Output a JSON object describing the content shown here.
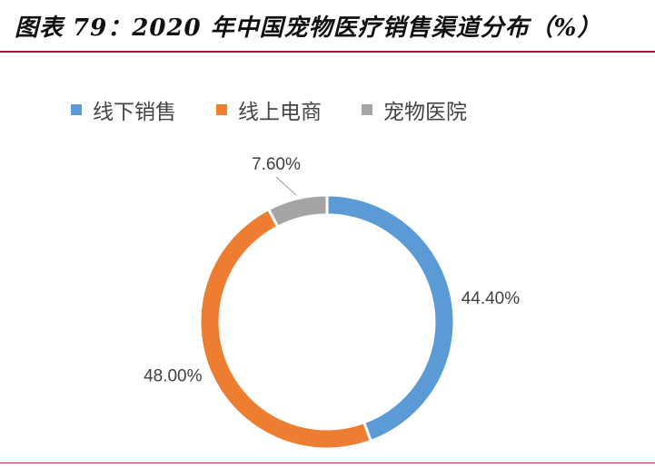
{
  "title": "图表 79：2020 年中国宠物医疗销售渠道分布（%）",
  "chart_data": {
    "type": "pie",
    "title": "图表 79：2020 年中国宠物医疗销售渠道分布（%）",
    "legend_position": "top",
    "series": [
      {
        "name": "线下销售",
        "value": 44.4,
        "label": "44.40%",
        "color": "#5b9bd5"
      },
      {
        "name": "线上电商",
        "value": 48.0,
        "label": "48.00%",
        "color": "#ed7d31"
      },
      {
        "name": "宠物医院",
        "value": 7.6,
        "label": "7.60%",
        "color": "#a5a5a5"
      }
    ]
  }
}
